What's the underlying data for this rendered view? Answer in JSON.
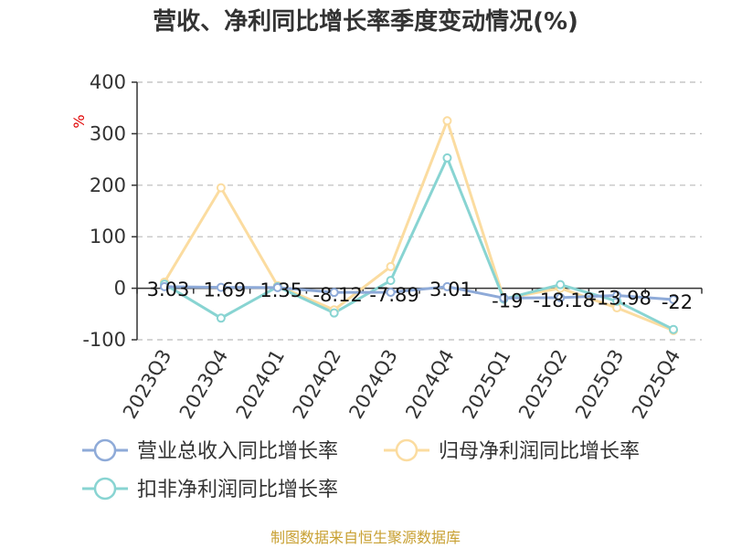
{
  "chart_data": {
    "type": "line",
    "title": "营收、净利同比增长率季度变动情况(%)",
    "unit_label": "%",
    "categories": [
      "2023Q3",
      "2023Q4",
      "2024Q1",
      "2024Q2",
      "2024Q3",
      "2024Q4",
      "2025Q1",
      "2025Q2",
      "2025Q3",
      "2025Q4"
    ],
    "y_ticks": [
      "400",
      "300",
      "200",
      "100",
      "0",
      "-100"
    ],
    "ylim": [
      -100,
      400
    ],
    "grid": true,
    "legend_position": "bottom",
    "series": [
      {
        "name": "营业总收入同比增长率",
        "color": "#8eaad8",
        "values": [
          3.03,
          1.69,
          1.35,
          -8.12,
          -7.89,
          3.01,
          -19,
          -18.18,
          -13.98,
          -22
        ],
        "labels": [
          "3.03",
          "1.69",
          "1.35",
          "-8.12",
          "-7.89",
          "3.01",
          "-19",
          "-18.18",
          "-13.98",
          "-22"
        ]
      },
      {
        "name": "归母净利润同比增长率",
        "color": "#fbdca0",
        "values": [
          12,
          195,
          5,
          -42,
          42,
          325,
          -20,
          0,
          -38,
          -82
        ]
      },
      {
        "name": "扣非净利润同比增长率",
        "color": "#88d4d2",
        "values": [
          8,
          -58,
          3,
          -48,
          15,
          253,
          -21,
          7,
          -25,
          -80
        ]
      }
    ]
  },
  "footer": {
    "source": "制图数据来自恒生聚源数据库"
  }
}
